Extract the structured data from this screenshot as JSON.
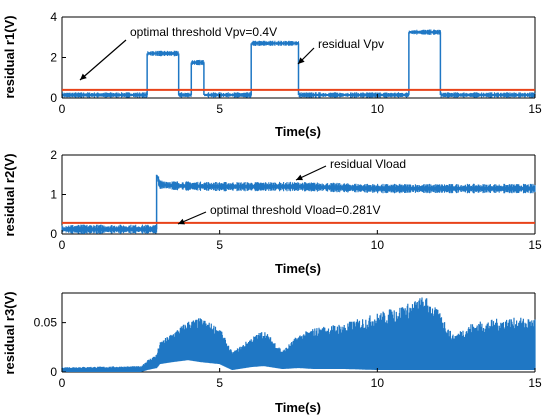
{
  "chart_data": [
    {
      "type": "line",
      "ylabel": "residual r1(V)",
      "xlabel": "Time(s)",
      "xlim": [
        0,
        15
      ],
      "ylim": [
        0,
        4
      ],
      "xticks": [
        0,
        5,
        10,
        15
      ],
      "yticks": [
        0,
        2,
        4
      ],
      "grid": false,
      "threshold": {
        "value": 0.4,
        "color": "#e8431a"
      },
      "series": [
        {
          "color": "#1f77c4",
          "style": "noise-band",
          "band": 0.18,
          "x": [
            0,
            2.7,
            2.7,
            3.7,
            3.7,
            4.1,
            4.1,
            4.5,
            4.5,
            6.0,
            6.0,
            7.5,
            7.5,
            11.0,
            11.0,
            12.0,
            12.0,
            15
          ],
          "y": [
            0.15,
            0.15,
            2.2,
            2.2,
            0.15,
            0.15,
            1.75,
            1.75,
            0.15,
            0.15,
            2.7,
            2.7,
            0.15,
            0.15,
            3.25,
            3.25,
            0.15,
            0.15
          ]
        }
      ],
      "annotations": [
        {
          "text": "optimal threshold Vpv=0.4V",
          "x": 0.6,
          "y": 0.45
        },
        {
          "text": "residual Vpv",
          "x": 7.5,
          "y": 2.2
        }
      ]
    },
    {
      "type": "line",
      "ylabel": "residual r2(V)",
      "xlabel": "Time(s)",
      "xlim": [
        0,
        15
      ],
      "ylim": [
        0,
        2
      ],
      "xticks": [
        0,
        5,
        10,
        15
      ],
      "yticks": [
        0,
        1,
        2
      ],
      "grid": false,
      "threshold": {
        "value": 0.281,
        "color": "#e8431a"
      },
      "series": [
        {
          "color": "#1f77c4",
          "style": "noise-band",
          "band": 0.16,
          "x": [
            0,
            3.0,
            3.0,
            3.1,
            3.6,
            5.0,
            7.5,
            10.0,
            15
          ],
          "y": [
            0.12,
            0.12,
            1.5,
            1.25,
            1.22,
            1.2,
            1.2,
            1.15,
            1.15
          ]
        }
      ],
      "annotations": [
        {
          "text": "residual Vload",
          "x": 7.5,
          "y": 1.3
        },
        {
          "text": "optimal threshold Vload=0.281V",
          "x": 3.7,
          "y": 0.32
        }
      ]
    },
    {
      "type": "line",
      "ylabel": "residual r3(V)",
      "xlabel": "Time(s)",
      "xlim": [
        0,
        15
      ],
      "ylim": [
        0,
        0.08
      ],
      "xticks": [
        0,
        5,
        10,
        15
      ],
      "yticks": [
        0,
        0.05
      ],
      "grid": false,
      "series": [
        {
          "color": "#1f77c4",
          "style": "envelope",
          "x": [
            0,
            2.5,
            2.7,
            3.0,
            3.1,
            3.5,
            4.0,
            4.4,
            5.0,
            5.4,
            6.0,
            6.4,
            7.0,
            7.5,
            8.0,
            9.0,
            10.0,
            11.0,
            11.5,
            12.0,
            12.4,
            13.0,
            14.0,
            15
          ],
          "upper": [
            0.005,
            0.006,
            0.012,
            0.018,
            0.03,
            0.04,
            0.052,
            0.055,
            0.045,
            0.02,
            0.035,
            0.043,
            0.022,
            0.038,
            0.045,
            0.05,
            0.06,
            0.07,
            0.078,
            0.06,
            0.038,
            0.05,
            0.055,
            0.055
          ],
          "lower": [
            0.0,
            0.0,
            0.002,
            0.004,
            0.008,
            0.01,
            0.012,
            0.01,
            0.008,
            0.002,
            0.005,
            0.006,
            0.003,
            0.004,
            0.003,
            0.003,
            0.002,
            0.002,
            0.002,
            0.002,
            0.002,
            0.002,
            0.002,
            0.002
          ]
        }
      ],
      "annotations": []
    }
  ]
}
